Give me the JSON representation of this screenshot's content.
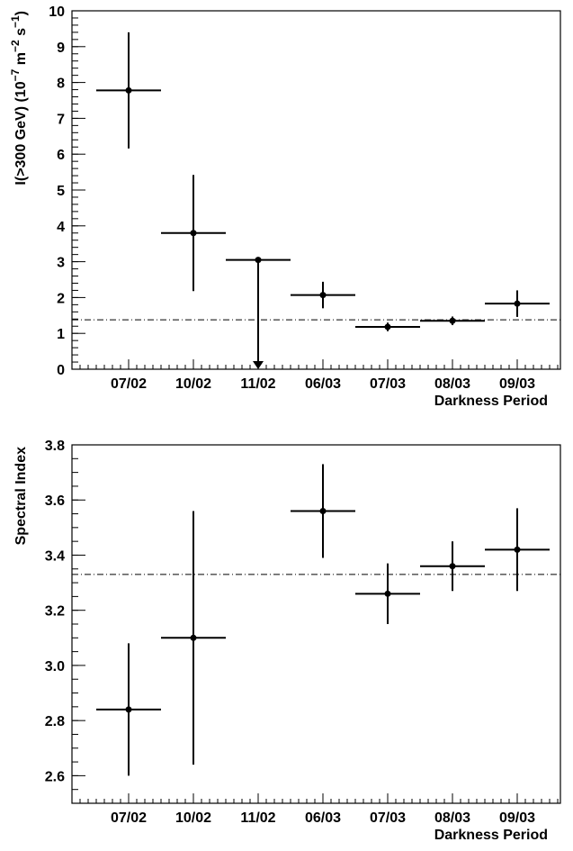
{
  "chart_data": [
    {
      "type": "scatter",
      "categories": [
        "07/02",
        "10/02",
        "11/02",
        "06/03",
        "07/03",
        "08/03",
        "09/03"
      ],
      "xlabel": "Darkness Period",
      "ylabel": "I(>300 GeV)  (10^-7 m^-2 s^-1)",
      "ylabel_parts": {
        "main": "I(>300 GeV)  (10",
        "exp1": "−7",
        "mid1": " m",
        "exp2": "−2",
        "mid2": " s",
        "exp3": "−1",
        "end": ")"
      },
      "ylim": [
        0,
        10
      ],
      "yticks": [
        0,
        1,
        2,
        3,
        4,
        5,
        6,
        7,
        8,
        9,
        10
      ],
      "ytick_labels": [
        "0",
        "1",
        "2",
        "3",
        "4",
        "5",
        "6",
        "7",
        "8",
        "9",
        "10"
      ],
      "grid": false,
      "reference_line": 1.38,
      "points": [
        {
          "category": "07/02",
          "y": 7.78,
          "yerr_low": 1.62,
          "yerr_high": 1.62,
          "upper_limit": false
        },
        {
          "category": "10/02",
          "y": 3.8,
          "yerr_low": 1.62,
          "yerr_high": 1.62,
          "upper_limit": false
        },
        {
          "category": "11/02",
          "y": 3.05,
          "yerr_low": 0,
          "yerr_high": 0,
          "upper_limit": true
        },
        {
          "category": "06/03",
          "y": 2.07,
          "yerr_low": 0.37,
          "yerr_high": 0.37,
          "upper_limit": false
        },
        {
          "category": "07/03",
          "y": 1.18,
          "yerr_low": 0.12,
          "yerr_high": 0.12,
          "upper_limit": false
        },
        {
          "category": "08/03",
          "y": 1.35,
          "yerr_low": 0.12,
          "yerr_high": 0.12,
          "upper_limit": false
        },
        {
          "category": "09/03",
          "y": 1.83,
          "yerr_low": 0.37,
          "yerr_high": 0.37,
          "upper_limit": false
        }
      ]
    },
    {
      "type": "scatter",
      "categories": [
        "07/02",
        "10/02",
        "11/02",
        "06/03",
        "07/03",
        "08/03",
        "09/03"
      ],
      "xlabel": "Darkness Period",
      "ylabel": "Spectral Index",
      "ylim": [
        2.5,
        3.8
      ],
      "yticks": [
        2.6,
        2.8,
        3.0,
        3.2,
        3.4,
        3.6,
        3.8
      ],
      "ytick_labels": [
        "2.6",
        "2.8",
        "3.0",
        "3.2",
        "3.4",
        "3.6",
        "3.8"
      ],
      "grid": false,
      "reference_line": 3.33,
      "points": [
        {
          "category": "07/02",
          "y": 2.84,
          "yerr_low": 0.24,
          "yerr_high": 0.24
        },
        {
          "category": "10/02",
          "y": 3.1,
          "yerr_low": 0.46,
          "yerr_high": 0.46
        },
        {
          "category": "06/03",
          "y": 3.56,
          "yerr_low": 0.17,
          "yerr_high": 0.17
        },
        {
          "category": "07/03",
          "y": 3.26,
          "yerr_low": 0.11,
          "yerr_high": 0.11
        },
        {
          "category": "08/03",
          "y": 3.36,
          "yerr_low": 0.09,
          "yerr_high": 0.09
        },
        {
          "category": "09/03",
          "y": 3.42,
          "yerr_low": 0.15,
          "yerr_high": 0.15
        }
      ]
    }
  ]
}
